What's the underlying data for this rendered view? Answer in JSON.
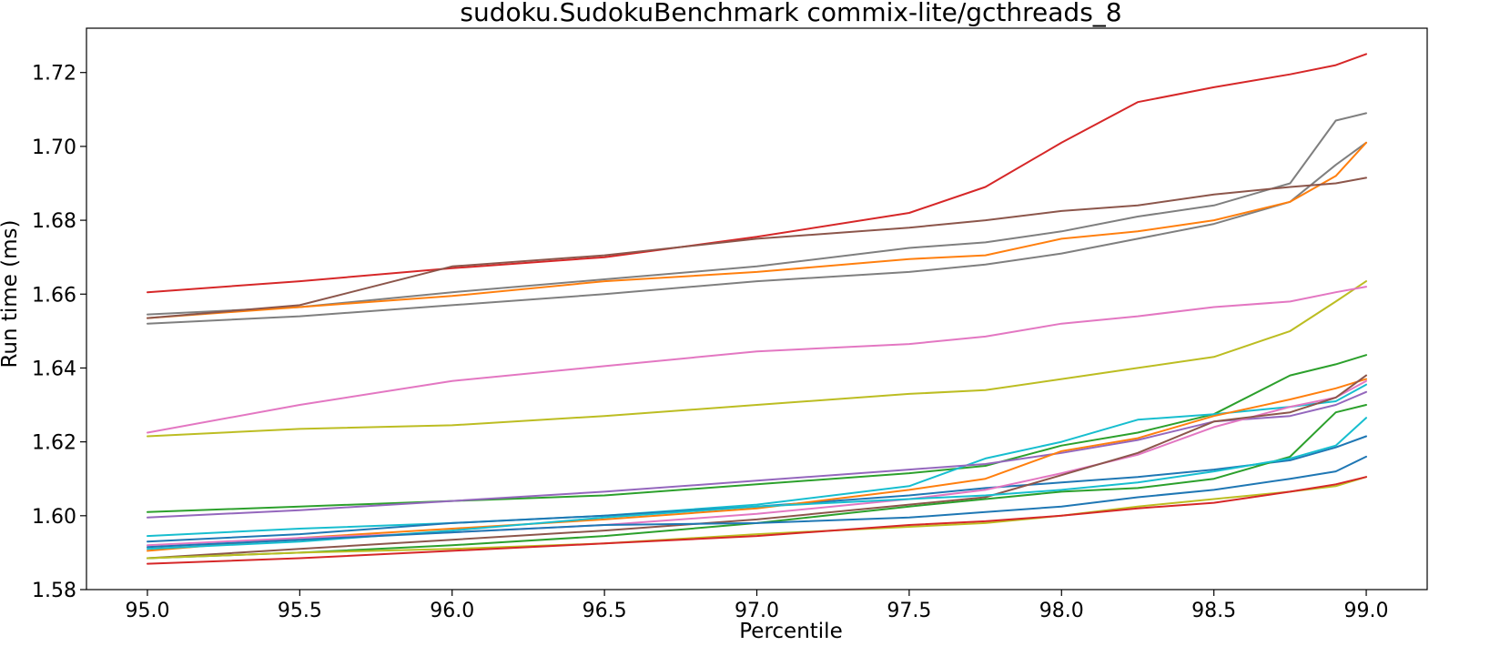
{
  "chart_data": {
    "type": "line",
    "title": "sudoku.SudokuBenchmark commix-lite/gcthreads_8",
    "xlabel": "Percentile",
    "ylabel": "Run time (ms)",
    "xlim": [
      94.8,
      99.2
    ],
    "ylim": [
      1.58,
      1.732
    ],
    "xticks": [
      95.0,
      95.5,
      96.0,
      96.5,
      97.0,
      97.5,
      98.0,
      98.5,
      99.0
    ],
    "xtick_labels": [
      "95.0",
      "95.5",
      "96.0",
      "96.5",
      "97.0",
      "97.5",
      "98.0",
      "98.5",
      "99.0"
    ],
    "yticks": [
      1.58,
      1.6,
      1.62,
      1.64,
      1.66,
      1.68,
      1.7,
      1.72
    ],
    "ytick_labels": [
      "1.58",
      "1.60",
      "1.62",
      "1.64",
      "1.66",
      "1.68",
      "1.70",
      "1.72"
    ],
    "grid": false,
    "legend": "none",
    "x": [
      95.0,
      95.5,
      96.0,
      96.5,
      97.0,
      97.5,
      97.75,
      98.0,
      98.25,
      98.5,
      98.75,
      98.9,
      99.0
    ],
    "series": [
      {
        "color": "#d62728",
        "values": [
          1.6605,
          1.6635,
          1.667,
          1.67,
          1.6755,
          1.682,
          1.689,
          1.701,
          1.712,
          1.716,
          1.7195,
          1.722,
          1.725
        ]
      },
      {
        "color": "#7f7f7f",
        "values": [
          1.6545,
          1.6565,
          1.6605,
          1.664,
          1.6675,
          1.6725,
          1.674,
          1.677,
          1.681,
          1.684,
          1.69,
          1.707,
          1.709
        ]
      },
      {
        "color": "#7f7f7f",
        "values": [
          1.652,
          1.654,
          1.657,
          1.66,
          1.6635,
          1.666,
          1.668,
          1.671,
          1.675,
          1.679,
          1.685,
          1.695,
          1.701
        ]
      },
      {
        "color": "#ff7f0e",
        "values": [
          1.6535,
          1.6565,
          1.6595,
          1.6635,
          1.666,
          1.6695,
          1.6705,
          1.675,
          1.677,
          1.68,
          1.685,
          1.692,
          1.701
        ]
      },
      {
        "color": "#8c564b",
        "values": [
          1.6535,
          1.657,
          1.6675,
          1.6705,
          1.675,
          1.678,
          1.68,
          1.6825,
          1.684,
          1.687,
          1.689,
          1.69,
          1.6915
        ]
      },
      {
        "color": "#bcbd22",
        "values": [
          1.6215,
          1.6235,
          1.6245,
          1.627,
          1.63,
          1.633,
          1.634,
          1.637,
          1.64,
          1.643,
          1.65,
          1.658,
          1.6635
        ]
      },
      {
        "color": "#e377c2",
        "values": [
          1.6225,
          1.63,
          1.6365,
          1.6405,
          1.6445,
          1.6465,
          1.6485,
          1.652,
          1.654,
          1.6565,
          1.658,
          1.6605,
          1.662
        ]
      },
      {
        "color": "#2ca02c",
        "values": [
          1.601,
          1.6025,
          1.604,
          1.6055,
          1.6085,
          1.6115,
          1.6135,
          1.619,
          1.6225,
          1.6275,
          1.638,
          1.641,
          1.6435
        ]
      },
      {
        "color": "#17becf",
        "values": [
          1.5945,
          1.5965,
          1.598,
          1.6,
          1.603,
          1.608,
          1.6155,
          1.62,
          1.626,
          1.6275,
          1.6295,
          1.631,
          1.6355
        ]
      },
      {
        "color": "#9467bd",
        "values": [
          1.5995,
          1.6015,
          1.604,
          1.6065,
          1.6095,
          1.6125,
          1.614,
          1.617,
          1.6205,
          1.6255,
          1.627,
          1.63,
          1.6335
        ]
      },
      {
        "color": "#1f77b4",
        "values": [
          1.593,
          1.595,
          1.598,
          1.6,
          1.6025,
          1.6055,
          1.6075,
          1.609,
          1.6105,
          1.6125,
          1.615,
          1.6185,
          1.6215
        ]
      },
      {
        "color": "#ff7f0e",
        "values": [
          1.5905,
          1.594,
          1.5965,
          1.599,
          1.602,
          1.607,
          1.61,
          1.6175,
          1.621,
          1.627,
          1.6315,
          1.6345,
          1.637
        ]
      },
      {
        "color": "#e377c2",
        "values": [
          1.592,
          1.594,
          1.5955,
          1.5975,
          1.6005,
          1.6045,
          1.607,
          1.6115,
          1.6165,
          1.624,
          1.6295,
          1.632,
          1.6365
        ]
      },
      {
        "color": "#8c564b",
        "values": [
          1.5885,
          1.591,
          1.5935,
          1.596,
          1.599,
          1.603,
          1.605,
          1.611,
          1.617,
          1.6255,
          1.628,
          1.632,
          1.638
        ]
      },
      {
        "color": "#2ca02c",
        "values": [
          1.5885,
          1.59,
          1.592,
          1.5945,
          1.598,
          1.6025,
          1.6045,
          1.6065,
          1.6075,
          1.61,
          1.616,
          1.628,
          1.63
        ]
      },
      {
        "color": "#17becf",
        "values": [
          1.591,
          1.593,
          1.596,
          1.5995,
          1.6025,
          1.6045,
          1.6055,
          1.607,
          1.609,
          1.612,
          1.6155,
          1.619,
          1.6265
        ]
      },
      {
        "color": "#1f77b4",
        "values": [
          1.5915,
          1.5935,
          1.5955,
          1.5975,
          1.598,
          1.5995,
          1.601,
          1.6025,
          1.605,
          1.607,
          1.61,
          1.612,
          1.616
        ]
      },
      {
        "color": "#bcbd22",
        "values": [
          1.5885,
          1.59,
          1.591,
          1.5925,
          1.595,
          1.597,
          1.598,
          1.6,
          1.6025,
          1.6045,
          1.6065,
          1.608,
          1.6105
        ]
      },
      {
        "color": "#d62728",
        "values": [
          1.587,
          1.5885,
          1.5905,
          1.5925,
          1.5945,
          1.5975,
          1.5985,
          1.6,
          1.602,
          1.6035,
          1.6065,
          1.6085,
          1.6105
        ]
      }
    ]
  }
}
